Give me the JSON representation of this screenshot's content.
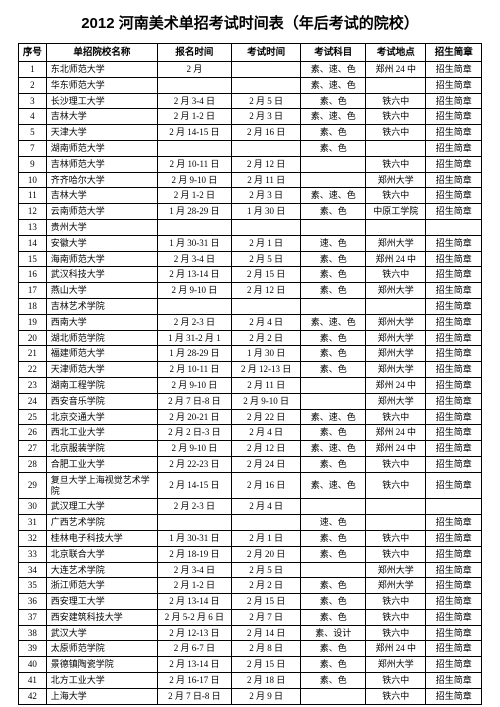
{
  "title": "2012 河南美术单招考试时间表（年后考试的院校）",
  "headers": {
    "seq": "序号",
    "school": "单招院校名称",
    "regtime": "报名时间",
    "examtime": "考试时间",
    "subject": "考试科目",
    "location": "考试地点",
    "guide": "招生简章"
  },
  "rows": [
    {
      "seq": "1",
      "school": "东北师范大学",
      "regtime": "2 月",
      "examtime": "",
      "subject": "素、速、色",
      "location": "郑州 24 中",
      "guide": "招生简章"
    },
    {
      "seq": "2",
      "school": "华东师范大学",
      "regtime": "",
      "examtime": "",
      "subject": "素、速、色",
      "location": "",
      "guide": "招生简章"
    },
    {
      "seq": "3",
      "school": "长沙理工大学",
      "regtime": "2 月 3-4 日",
      "examtime": "2 月 5 日",
      "subject": "素、色",
      "location": "铁六中",
      "guide": "招生简章"
    },
    {
      "seq": "4",
      "school": "吉林大学",
      "regtime": "2 月 1-2 日",
      "examtime": "2 月 3 日",
      "subject": "素、速、色",
      "location": "铁六中",
      "guide": "招生简章"
    },
    {
      "seq": "5",
      "school": "天津大学",
      "regtime": "2 月 14-15 日",
      "examtime": "2 月 16 日",
      "subject": "素、色",
      "location": "铁六中",
      "guide": "招生简章"
    },
    {
      "seq": "7",
      "school": "湖南师范大学",
      "regtime": "",
      "examtime": "",
      "subject": "素、色",
      "location": "",
      "guide": "招生简章"
    },
    {
      "seq": "9",
      "school": "吉林师范大学",
      "regtime": "2 月 10-11 日",
      "examtime": "2 月 12 日",
      "subject": "",
      "location": "铁六中",
      "guide": "招生简章"
    },
    {
      "seq": "10",
      "school": "齐齐哈尔大学",
      "regtime": "2 月 9-10 日",
      "examtime": "2 月 11 日",
      "subject": "",
      "location": "郑州大学",
      "guide": "招生简章"
    },
    {
      "seq": "11",
      "school": "吉林大学",
      "regtime": "2 月 1-2 日",
      "examtime": "2 月 3 日",
      "subject": "素、速、色",
      "location": "铁六中",
      "guide": "招生简章"
    },
    {
      "seq": "12",
      "school": "云南师范大学",
      "regtime": "1 月 28-29 日",
      "examtime": "1 月 30 日",
      "subject": "素、色",
      "location": "中原工学院",
      "guide": "招生简章"
    },
    {
      "seq": "13",
      "school": "贵州大学",
      "regtime": "",
      "examtime": "",
      "subject": "",
      "location": "",
      "guide": ""
    },
    {
      "seq": "14",
      "school": "安徽大学",
      "regtime": "1 月 30-31 日",
      "examtime": "2 月 1 日",
      "subject": "速、色",
      "location": "郑州大学",
      "guide": "招生简章"
    },
    {
      "seq": "15",
      "school": "海南师范大学",
      "regtime": "2 月 3-4 日",
      "examtime": "2 月 5 日",
      "subject": "素、色",
      "location": "郑州 24 中",
      "guide": "招生简章"
    },
    {
      "seq": "16",
      "school": "武汉科技大学",
      "regtime": "2 月 13-14 日",
      "examtime": "2 月 15 日",
      "subject": "素、色",
      "location": "铁六中",
      "guide": "招生简章"
    },
    {
      "seq": "17",
      "school": "燕山大学",
      "regtime": "2 月 9-10 日",
      "examtime": "2 月 12 日",
      "subject": "素、色",
      "location": "郑州大学",
      "guide": "招生简章"
    },
    {
      "seq": "18",
      "school": "吉林艺术学院",
      "regtime": "",
      "examtime": "",
      "subject": "",
      "location": "",
      "guide": "招生简章"
    },
    {
      "seq": "19",
      "school": "西南大学",
      "regtime": "2 月 2-3 日",
      "examtime": "2 月 4 日",
      "subject": "素、速、色",
      "location": "郑州大学",
      "guide": "招生简章"
    },
    {
      "seq": "20",
      "school": "湖北师范学院",
      "regtime": "1 月 31-2 月 1",
      "examtime": "2 月 2 日",
      "subject": "素、色",
      "location": "郑州大学",
      "guide": "招生简章"
    },
    {
      "seq": "21",
      "school": "福建师范大学",
      "regtime": "1 月 28-29 日",
      "examtime": "1 月 30 日",
      "subject": "素、色",
      "location": "郑州大学",
      "guide": "招生简章"
    },
    {
      "seq": "22",
      "school": "天津师范大学",
      "regtime": "2 月 10-11 日",
      "examtime": "2 月 12-13 日",
      "subject": "素、色",
      "location": "郑州大学",
      "guide": "招生简章"
    },
    {
      "seq": "23",
      "school": "湖南工程学院",
      "regtime": "2 月 9-10 日",
      "examtime": "2 月 11 日",
      "subject": "",
      "location": "郑州 24 中",
      "guide": "招生简章"
    },
    {
      "seq": "24",
      "school": "西安音乐学院",
      "regtime": "2 月 7 日-8 日",
      "examtime": "2 月 9-10 日",
      "subject": "",
      "location": "郑州大学",
      "guide": "招生简章"
    },
    {
      "seq": "25",
      "school": "北京交通大学",
      "regtime": "2 月 20-21 日",
      "examtime": "2 月 22 日",
      "subject": "素、速、色",
      "location": "铁六中",
      "guide": "招生简章"
    },
    {
      "seq": "26",
      "school": "西北工业大学",
      "regtime": "2 月 2 日-3 日",
      "examtime": "2 月 4 日",
      "subject": "素、色",
      "location": "郑州 24 中",
      "guide": "招生简章"
    },
    {
      "seq": "27",
      "school": "北京服装学院",
      "regtime": "2 月 9-10 日",
      "examtime": "2 月 12 日",
      "subject": "素、速、色",
      "location": "郑州 24 中",
      "guide": "招生简章"
    },
    {
      "seq": "28",
      "school": "合肥工业大学",
      "regtime": "2 月 22-23 日",
      "examtime": "2 月 24 日",
      "subject": "素、色",
      "location": "铁六中",
      "guide": "招生简章"
    },
    {
      "seq": "29",
      "school": "复旦大学上海视觉艺术学院",
      "regtime": "2 月 14-15 日",
      "examtime": "2 月 16 日",
      "subject": "素、速、色",
      "location": "铁六中",
      "guide": "招生简章",
      "tall": true
    },
    {
      "seq": "30",
      "school": "武汉理工大学",
      "regtime": "2 月 2-3 日",
      "examtime": "2 月 4 日",
      "subject": "",
      "location": "",
      "guide": ""
    },
    {
      "seq": "31",
      "school": "广西艺术学院",
      "regtime": "",
      "examtime": "",
      "subject": "速、色",
      "location": "",
      "guide": "招生简章"
    },
    {
      "seq": "32",
      "school": "桂林电子科技大学",
      "regtime": "1 月 30-31 日",
      "examtime": "2 月 1 日",
      "subject": "素、色",
      "location": "铁六中",
      "guide": "招生简章"
    },
    {
      "seq": "33",
      "school": "北京联合大学",
      "regtime": "2 月 18-19 日",
      "examtime": "2 月 20 日",
      "subject": "素、色",
      "location": "铁六中",
      "guide": "招生简章"
    },
    {
      "seq": "34",
      "school": "大连艺术学院",
      "regtime": "2 月 3-4 日",
      "examtime": "2 月 5 日",
      "subject": "",
      "location": "郑州大学",
      "guide": "招生简章"
    },
    {
      "seq": "35",
      "school": "浙江师范大学",
      "regtime": "2 月 1-2 日",
      "examtime": "2 月 2 日",
      "subject": "素、色",
      "location": "郑州大学",
      "guide": "招生简章"
    },
    {
      "seq": "36",
      "school": "西安理工大学",
      "regtime": "2 月 13-14 日",
      "examtime": "2 月 15 日",
      "subject": "素、色",
      "location": "铁六中",
      "guide": "招生简章"
    },
    {
      "seq": "37",
      "school": "西安建筑科技大学",
      "regtime": "2 月 5-2 月 6 日",
      "examtime": "2 月 7 日",
      "subject": "素、色",
      "location": "铁六中",
      "guide": "招生简章"
    },
    {
      "seq": "38",
      "school": "武汉大学",
      "regtime": "2 月 12-13 日",
      "examtime": "2 月 14 日",
      "subject": "素、设计",
      "location": "铁六中",
      "guide": "招生简章"
    },
    {
      "seq": "39",
      "school": "太原师范学院",
      "regtime": "2 月 6-7 日",
      "examtime": "2 月 8 日",
      "subject": "素、色",
      "location": "郑州 24 中",
      "guide": "招生简章"
    },
    {
      "seq": "40",
      "school": "景德镇陶瓷学院",
      "regtime": "2 月 13-14 日",
      "examtime": "2 月 15 日",
      "subject": "素、色",
      "location": "郑州大学",
      "guide": "招生简章"
    },
    {
      "seq": "41",
      "school": "北方工业大学",
      "regtime": "2 月 16-17 日",
      "examtime": "2 月 18 日",
      "subject": "素、色",
      "location": "铁六中",
      "guide": "招生简章"
    },
    {
      "seq": "42",
      "school": "上海大学",
      "regtime": "2 月 7 日-8 日",
      "examtime": "2 月 9 日",
      "subject": "",
      "location": "铁六中",
      "guide": "招生简章"
    }
  ]
}
